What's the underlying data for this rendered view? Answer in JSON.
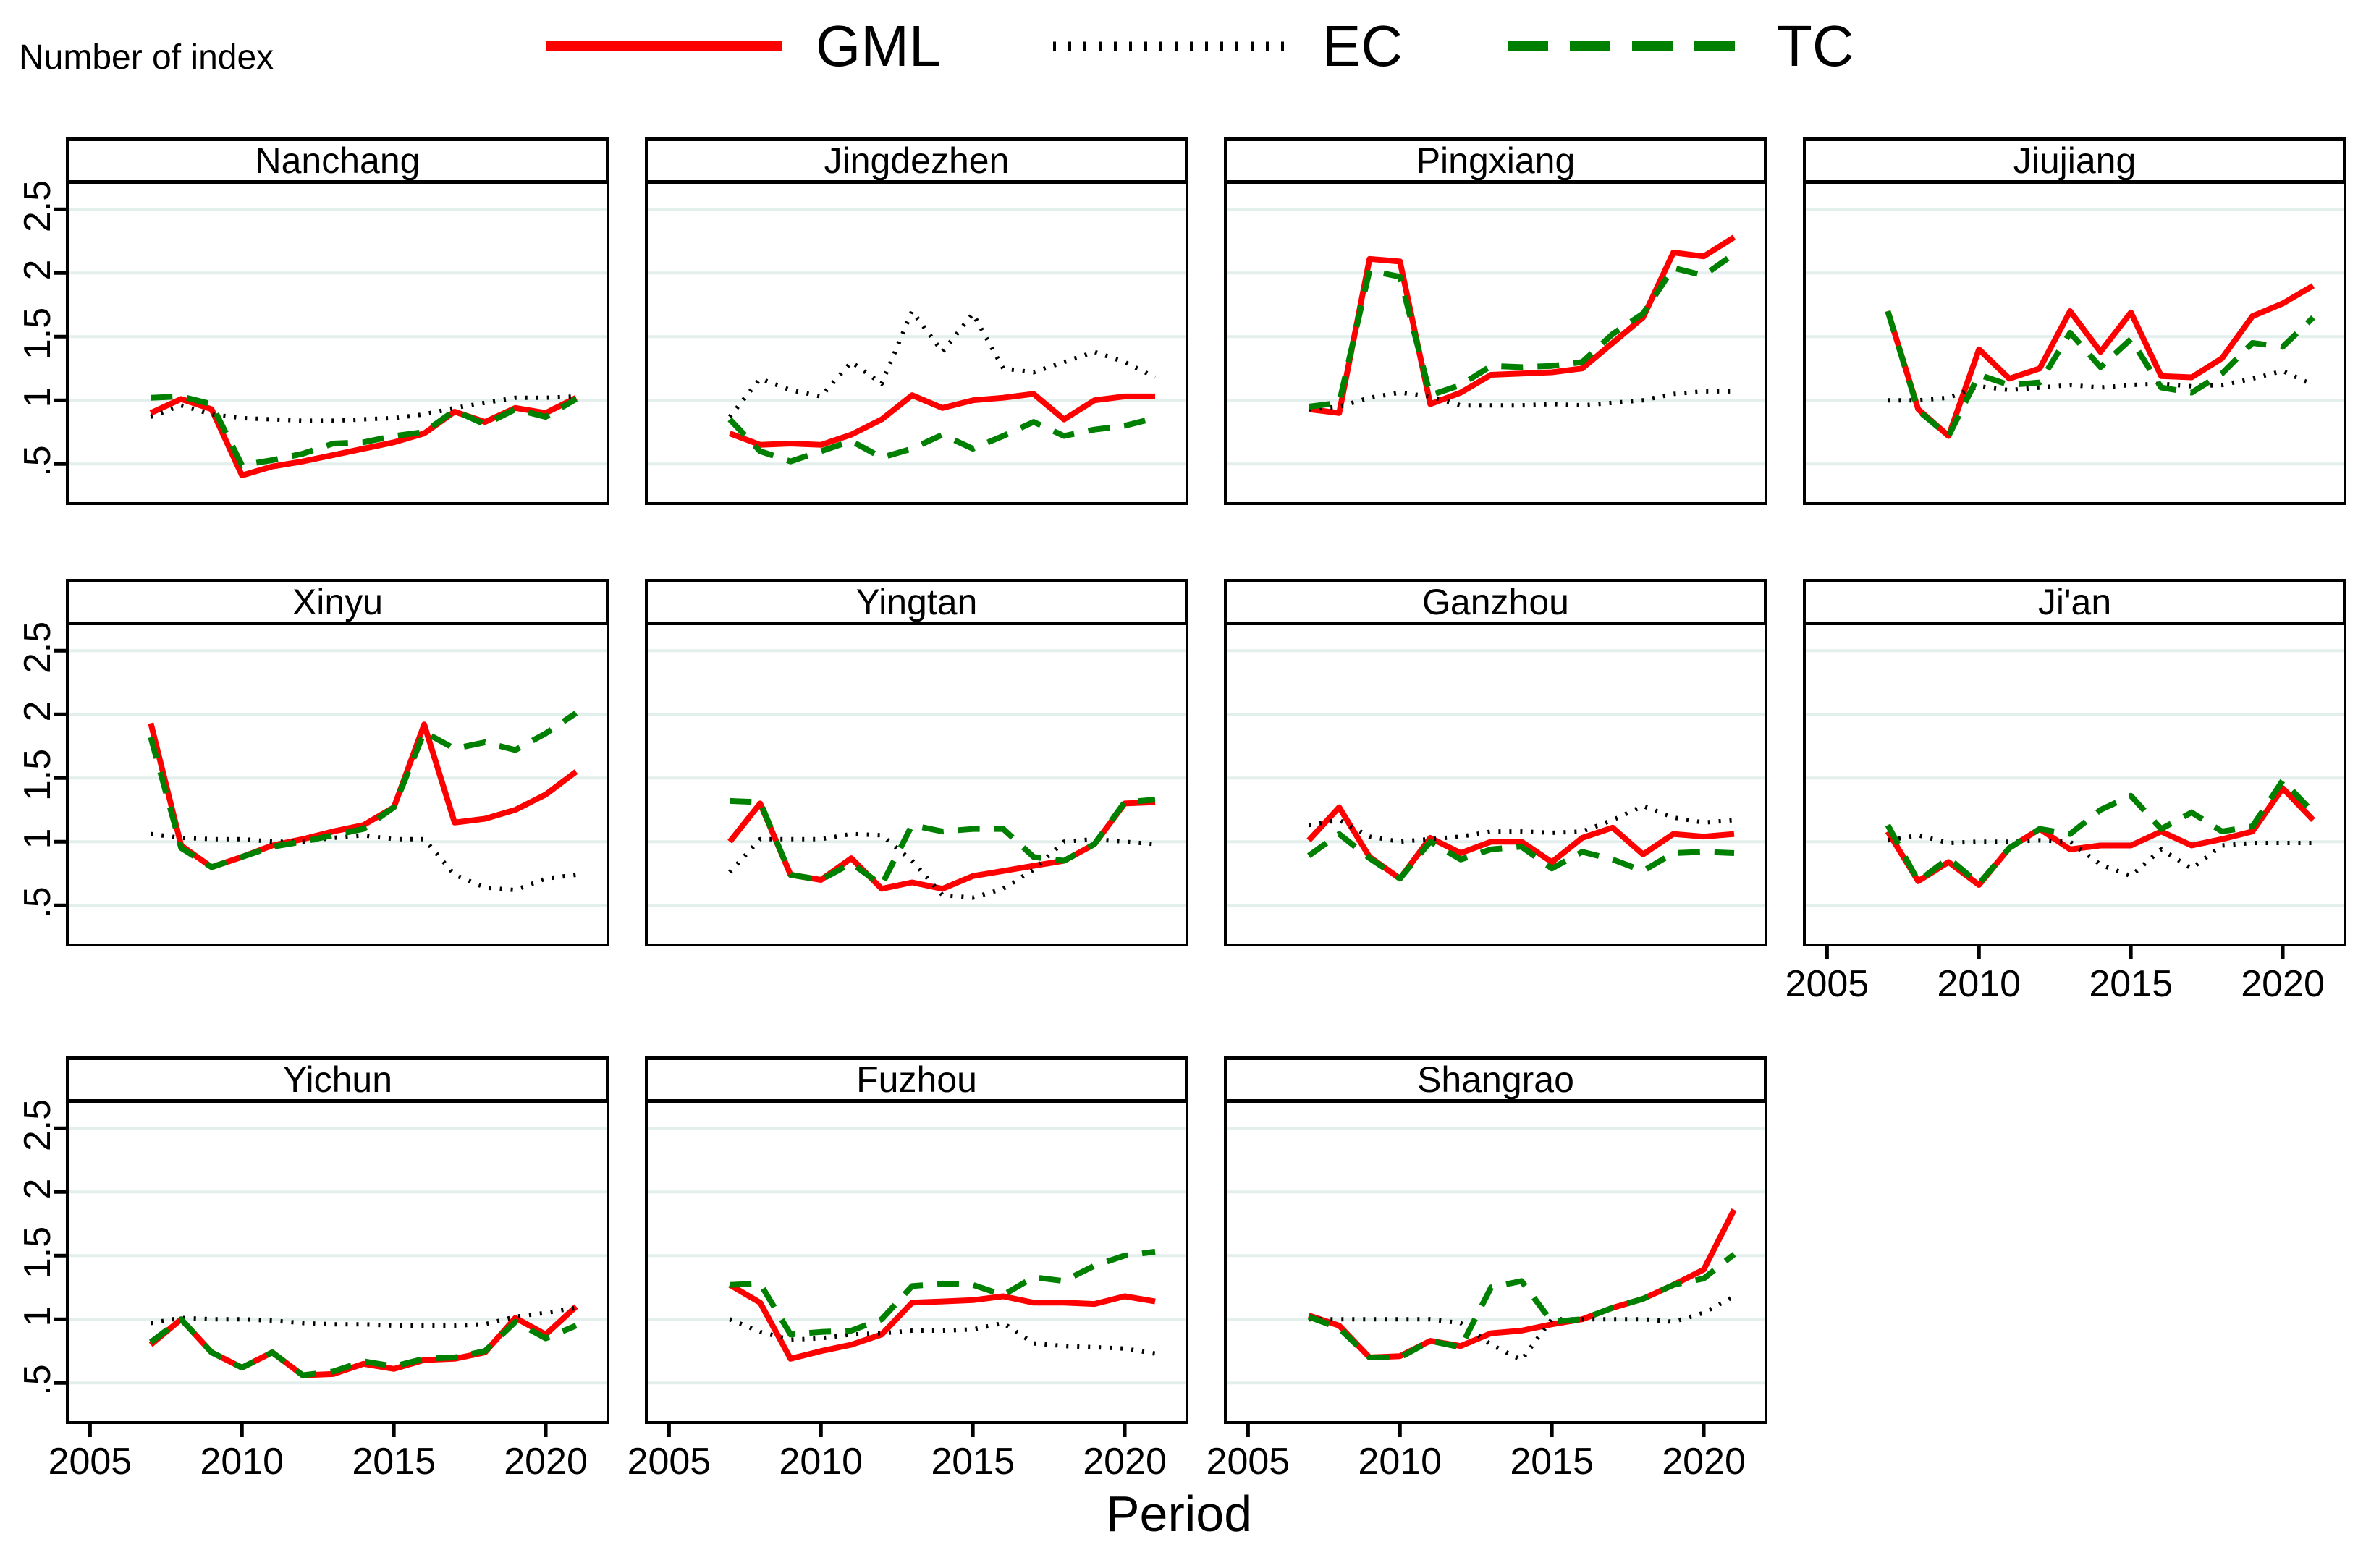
{
  "ylabel": "Number of index",
  "xlabel": "Period",
  "legend": {
    "items": [
      {
        "id": "gml",
        "label": "GML",
        "color": "#ff0000",
        "style": "solid"
      },
      {
        "id": "ec",
        "label": "EC",
        "color": "#000000",
        "style": "dotted"
      },
      {
        "id": "tc",
        "label": "TC",
        "color": "#008000",
        "style": "dashed"
      }
    ]
  },
  "theme": {
    "grid_color": "#e3efed",
    "axis_color": "#000000",
    "panel_background": "#ffffff"
  },
  "axes": {
    "ylim": [
      0.2,
      2.7
    ],
    "xlim": [
      2004.3,
      2022
    ],
    "grid": "horizontal",
    "y_ticks": [
      {
        "value": 0.5,
        "label": ".5"
      },
      {
        "value": 1,
        "label": "1"
      },
      {
        "value": 1.5,
        "label": "1.5"
      },
      {
        "value": 2,
        "label": "2"
      },
      {
        "value": 2.5,
        "label": "2.5"
      }
    ],
    "x_ticks": [
      {
        "value": 2005,
        "label": "2005"
      },
      {
        "value": 2010,
        "label": "2010"
      },
      {
        "value": 2015,
        "label": "2015"
      },
      {
        "value": 2020,
        "label": "2020"
      }
    ]
  },
  "chart_data": {
    "type": "line",
    "title": "",
    "xlabel": "Period",
    "ylabel": "Number of index",
    "x": [
      2007,
      2008,
      2009,
      2010,
      2011,
      2012,
      2013,
      2014,
      2015,
      2016,
      2017,
      2018,
      2019,
      2020,
      2021
    ],
    "panels": [
      {
        "name": "Nanchang",
        "series": [
          {
            "name": "GML",
            "values": [
              0.9,
              1.01,
              0.93,
              0.41,
              0.48,
              0.52,
              0.57,
              0.62,
              0.67,
              0.74,
              0.91,
              0.83,
              0.94,
              0.9,
              1.02
            ]
          },
          {
            "name": "EC",
            "values": [
              0.87,
              0.96,
              0.89,
              0.86,
              0.85,
              0.84,
              0.84,
              0.85,
              0.86,
              0.89,
              0.94,
              0.98,
              1.02,
              1.02,
              1.03
            ]
          },
          {
            "name": "TC",
            "values": [
              1.02,
              1.03,
              0.97,
              0.49,
              0.53,
              0.58,
              0.66,
              0.67,
              0.72,
              0.75,
              0.92,
              0.81,
              0.93,
              0.87,
              1.01
            ]
          }
        ]
      },
      {
        "name": "Jingdezhen",
        "series": [
          {
            "name": "GML",
            "values": [
              0.74,
              0.65,
              0.66,
              0.65,
              0.73,
              0.85,
              1.04,
              0.94,
              1.0,
              1.02,
              1.05,
              0.85,
              1.0,
              1.03,
              1.03
            ]
          },
          {
            "name": "EC",
            "values": [
              0.87,
              1.17,
              1.08,
              1.03,
              1.3,
              1.13,
              1.7,
              1.38,
              1.68,
              1.25,
              1.22,
              1.3,
              1.38,
              1.3,
              1.18
            ]
          },
          {
            "name": "TC",
            "values": [
              0.85,
              0.6,
              0.52,
              0.6,
              0.68,
              0.55,
              0.62,
              0.73,
              0.62,
              0.72,
              0.83,
              0.72,
              0.77,
              0.8,
              0.86
            ]
          }
        ]
      },
      {
        "name": "Pingxiang",
        "series": [
          {
            "name": "GML",
            "values": [
              0.93,
              0.9,
              2.11,
              2.09,
              0.97,
              1.06,
              1.2,
              1.21,
              1.22,
              1.25,
              1.45,
              1.65,
              2.16,
              2.13,
              2.28
            ]
          },
          {
            "name": "EC",
            "values": [
              0.93,
              0.95,
              1.02,
              1.06,
              1.03,
              0.96,
              0.96,
              0.96,
              0.97,
              0.96,
              0.98,
              1.0,
              1.05,
              1.07,
              1.07
            ]
          },
          {
            "name": "TC",
            "values": [
              0.95,
              0.98,
              2.02,
              1.97,
              1.04,
              1.12,
              1.27,
              1.26,
              1.27,
              1.3,
              1.52,
              1.68,
              2.04,
              1.98,
              2.15
            ]
          }
        ]
      },
      {
        "name": "Jiujiang",
        "series": [
          {
            "name": "GML",
            "values": [
              1.7,
              0.93,
              0.72,
              1.4,
              1.17,
              1.25,
              1.7,
              1.38,
              1.69,
              1.19,
              1.18,
              1.33,
              1.66,
              1.76,
              1.9
            ]
          },
          {
            "name": "EC",
            "values": [
              1.0,
              1.0,
              1.02,
              1.11,
              1.08,
              1.1,
              1.12,
              1.1,
              1.12,
              1.13,
              1.11,
              1.12,
              1.17,
              1.23,
              1.12
            ]
          },
          {
            "name": "TC",
            "values": [
              1.7,
              0.92,
              0.72,
              1.2,
              1.12,
              1.14,
              1.53,
              1.26,
              1.48,
              1.1,
              1.06,
              1.21,
              1.45,
              1.42,
              1.65
            ]
          }
        ]
      },
      {
        "name": "Xinyu",
        "series": [
          {
            "name": "GML",
            "values": [
              1.93,
              0.97,
              0.8,
              0.88,
              0.97,
              1.02,
              1.08,
              1.13,
              1.27,
              1.92,
              1.15,
              1.18,
              1.25,
              1.37,
              1.55
            ]
          },
          {
            "name": "EC",
            "values": [
              1.06,
              1.03,
              1.02,
              1.02,
              1.0,
              1.0,
              1.03,
              1.05,
              1.02,
              1.02,
              0.74,
              0.64,
              0.62,
              0.71,
              0.74
            ]
          },
          {
            "name": "TC",
            "values": [
              1.82,
              0.95,
              0.8,
              0.88,
              0.96,
              1.0,
              1.05,
              1.1,
              1.27,
              1.86,
              1.73,
              1.78,
              1.72,
              1.85,
              2.01
            ]
          }
        ]
      },
      {
        "name": "Yingtan",
        "series": [
          {
            "name": "GML",
            "values": [
              1.0,
              1.3,
              0.74,
              0.7,
              0.87,
              0.63,
              0.68,
              0.63,
              0.73,
              0.77,
              0.81,
              0.85,
              0.98,
              1.3,
              1.31
            ]
          },
          {
            "name": "EC",
            "values": [
              0.76,
              1.02,
              1.02,
              1.02,
              1.06,
              1.05,
              0.85,
              0.58,
              0.56,
              0.63,
              0.78,
              1.0,
              1.02,
              1.0,
              0.98
            ]
          },
          {
            "name": "TC",
            "values": [
              1.32,
              1.31,
              0.74,
              0.7,
              0.83,
              0.66,
              1.13,
              1.08,
              1.1,
              1.1,
              0.88,
              0.85,
              0.98,
              1.31,
              1.33
            ]
          }
        ]
      },
      {
        "name": "Ganzhou",
        "series": [
          {
            "name": "GML",
            "values": [
              1.01,
              1.27,
              0.88,
              0.71,
              1.03,
              0.91,
              1.0,
              1.0,
              0.84,
              1.03,
              1.11,
              0.9,
              1.06,
              1.04,
              1.06
            ]
          },
          {
            "name": "EC",
            "values": [
              1.13,
              1.17,
              1.04,
              1.0,
              1.02,
              1.04,
              1.08,
              1.08,
              1.07,
              1.08,
              1.17,
              1.28,
              1.19,
              1.15,
              1.17
            ]
          },
          {
            "name": "TC",
            "values": [
              0.89,
              1.06,
              0.87,
              0.71,
              1.0,
              0.86,
              0.94,
              0.96,
              0.79,
              0.92,
              0.86,
              0.77,
              0.91,
              0.92,
              0.91
            ]
          }
        ]
      },
      {
        "name": "Ji'an",
        "series": [
          {
            "name": "GML",
            "values": [
              1.08,
              0.69,
              0.84,
              0.66,
              0.95,
              1.1,
              0.94,
              0.97,
              0.97,
              1.08,
              0.97,
              1.02,
              1.08,
              1.42,
              1.17
            ]
          },
          {
            "name": "EC",
            "values": [
              1.01,
              1.05,
              0.99,
              1.0,
              1.0,
              1.01,
              1.0,
              0.82,
              0.73,
              0.94,
              0.79,
              0.97,
              0.99,
              0.99,
              0.99
            ]
          },
          {
            "name": "TC",
            "values": [
              1.13,
              0.69,
              0.87,
              0.67,
              0.95,
              1.1,
              1.06,
              1.25,
              1.36,
              1.1,
              1.23,
              1.08,
              1.12,
              1.48,
              1.23
            ]
          }
        ]
      },
      {
        "name": "Yichun",
        "series": [
          {
            "name": "GML",
            "values": [
              0.8,
              1.0,
              0.74,
              0.62,
              0.74,
              0.56,
              0.57,
              0.65,
              0.61,
              0.68,
              0.69,
              0.74,
              1.01,
              0.88,
              1.1
            ]
          },
          {
            "name": "EC",
            "values": [
              0.97,
              1.01,
              1.0,
              1.0,
              0.99,
              0.97,
              0.96,
              0.96,
              0.95,
              0.95,
              0.95,
              0.96,
              1.02,
              1.05,
              1.09
            ]
          },
          {
            "name": "TC",
            "values": [
              0.82,
              1.0,
              0.74,
              0.62,
              0.74,
              0.56,
              0.59,
              0.67,
              0.63,
              0.69,
              0.7,
              0.75,
              0.98,
              0.85,
              0.95
            ]
          }
        ]
      },
      {
        "name": "Fuzhou",
        "series": [
          {
            "name": "GML",
            "values": [
              1.27,
              1.13,
              0.69,
              0.75,
              0.8,
              0.88,
              1.13,
              1.14,
              1.15,
              1.18,
              1.13,
              1.13,
              1.12,
              1.18,
              1.14
            ]
          },
          {
            "name": "EC",
            "values": [
              1.0,
              0.9,
              0.84,
              0.85,
              0.88,
              0.89,
              0.91,
              0.91,
              0.92,
              0.97,
              0.81,
              0.79,
              0.78,
              0.77,
              0.73
            ]
          },
          {
            "name": "TC",
            "values": [
              1.27,
              1.28,
              0.88,
              0.9,
              0.91,
              1.0,
              1.26,
              1.28,
              1.27,
              1.19,
              1.33,
              1.3,
              1.42,
              1.5,
              1.53
            ]
          }
        ]
      },
      {
        "name": "Shangrao",
        "series": [
          {
            "name": "GML",
            "values": [
              1.03,
              0.95,
              0.7,
              0.71,
              0.83,
              0.79,
              0.89,
              0.91,
              0.96,
              1.0,
              1.09,
              1.16,
              1.27,
              1.39,
              1.86
            ]
          },
          {
            "name": "EC",
            "values": [
              1.0,
              1.0,
              1.0,
              1.0,
              1.0,
              0.97,
              0.8,
              0.68,
              1.0,
              1.0,
              1.0,
              1.0,
              0.98,
              1.05,
              1.18
            ]
          },
          {
            "name": "TC",
            "values": [
              1.02,
              0.93,
              0.7,
              0.7,
              0.83,
              0.78,
              1.25,
              1.3,
              0.98,
              1.0,
              1.09,
              1.16,
              1.27,
              1.32,
              1.51
            ]
          }
        ]
      }
    ]
  }
}
